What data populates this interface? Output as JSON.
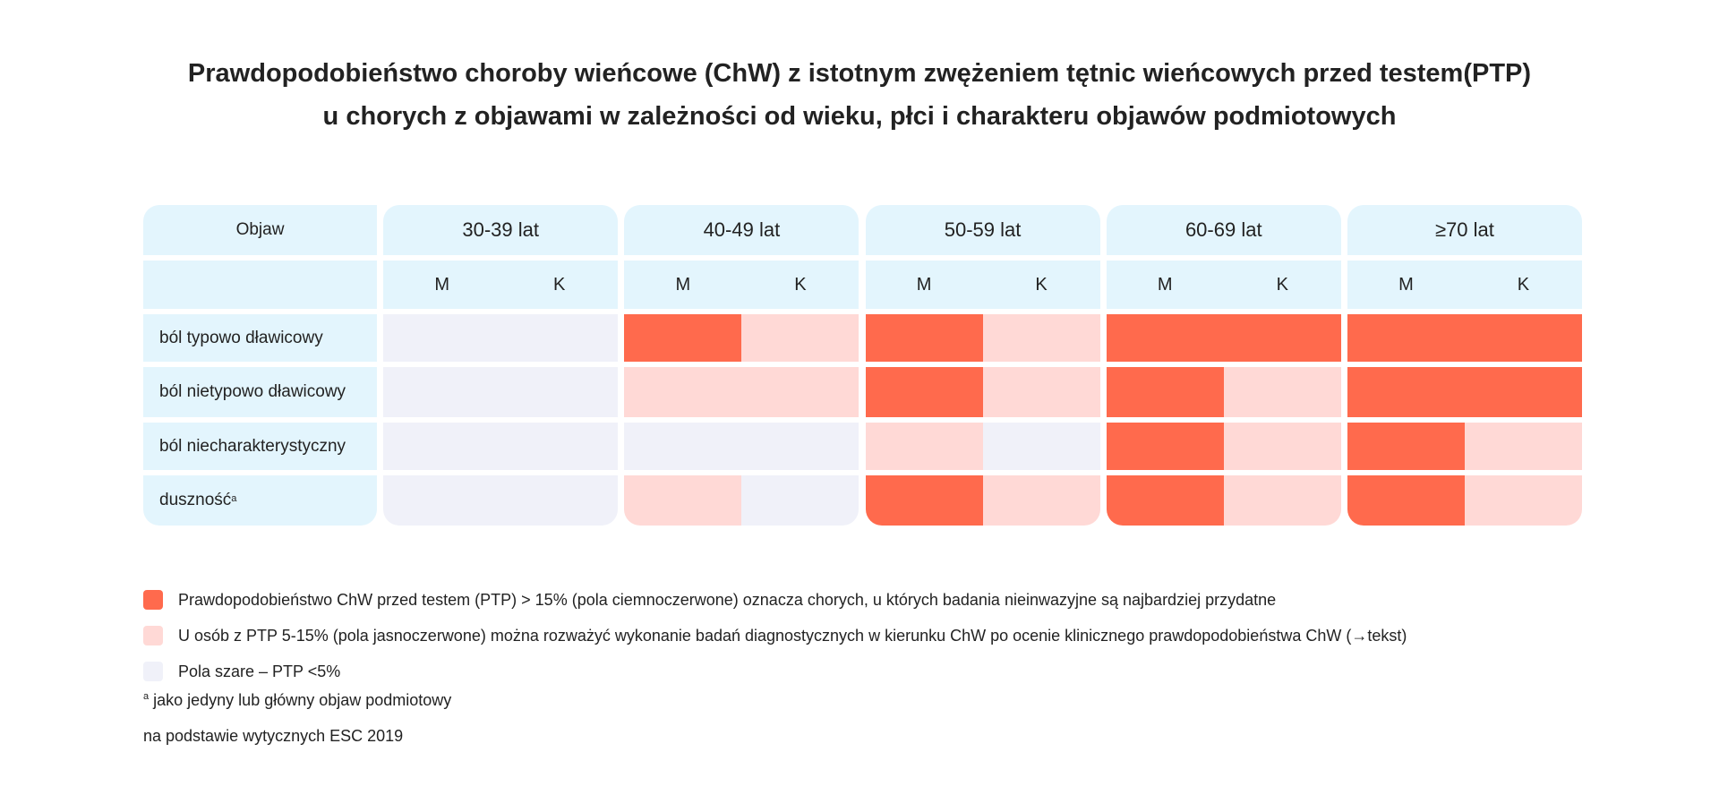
{
  "title": {
    "line1": "Prawdopodobieństwo choroby wieńcowe (ChW) z istotnym zwężeniem tętnic wieńcowych przed testem(PTP)",
    "line2": "u chorych z objawami w zależności od wieku, płci i charakteru objawów podmiotowych"
  },
  "colors": {
    "dark": "#ff6a4d",
    "light": "#ffd9d6",
    "grey": "#f0f1f9",
    "header": "#e3f5fd"
  },
  "chart_data": {
    "type": "heatmap",
    "symptom_header": "Objaw",
    "age_groups": [
      "30-39 lat",
      "40-49 lat",
      "50-59 lat",
      "60-69 lat",
      "≥70 lat"
    ],
    "sex_labels": [
      "M",
      "K"
    ],
    "rows": [
      {
        "label": "ból typowo dławicowy",
        "sup": "",
        "cells": [
          "grey",
          "grey",
          "dark",
          "light",
          "dark",
          "light",
          "dark",
          "dark",
          "dark",
          "dark"
        ]
      },
      {
        "label": "ból nietypowo dławicowy",
        "sup": "",
        "cells": [
          "grey",
          "grey",
          "light",
          "light",
          "dark",
          "light",
          "dark",
          "light",
          "dark",
          "dark"
        ]
      },
      {
        "label": "ból niecharakterystyczny",
        "sup": "",
        "cells": [
          "grey",
          "grey",
          "grey",
          "grey",
          "light",
          "grey",
          "dark",
          "light",
          "dark",
          "light"
        ]
      },
      {
        "label": "duszność",
        "sup": "a",
        "cells": [
          "grey",
          "grey",
          "light",
          "grey",
          "dark",
          "light",
          "dark",
          "light",
          "dark",
          "light"
        ]
      }
    ]
  },
  "legend": [
    {
      "color": "dark",
      "text": "Prawdopodobieństwo ChW przed testem (PTP) > 15% (pola ciemnoczerwone) oznacza chorych, u których badania nieinwazyjne są najbardziej przydatne"
    },
    {
      "color": "light",
      "text": "U osób z PTP 5-15% (pola jasnoczerwone) można rozważyć wykonanie badań diagnostycznych w kierunku ChW po ocenie klinicznego prawdopodobieństwa ChW (→tekst)"
    },
    {
      "color": "grey",
      "text": "Pola szare – PTP <5%"
    }
  ],
  "footnote": {
    "sup": "a",
    "text": " jako jedyny lub główny objaw podmiotowy"
  },
  "source": "na podstawie wytycznych ESC 2019"
}
